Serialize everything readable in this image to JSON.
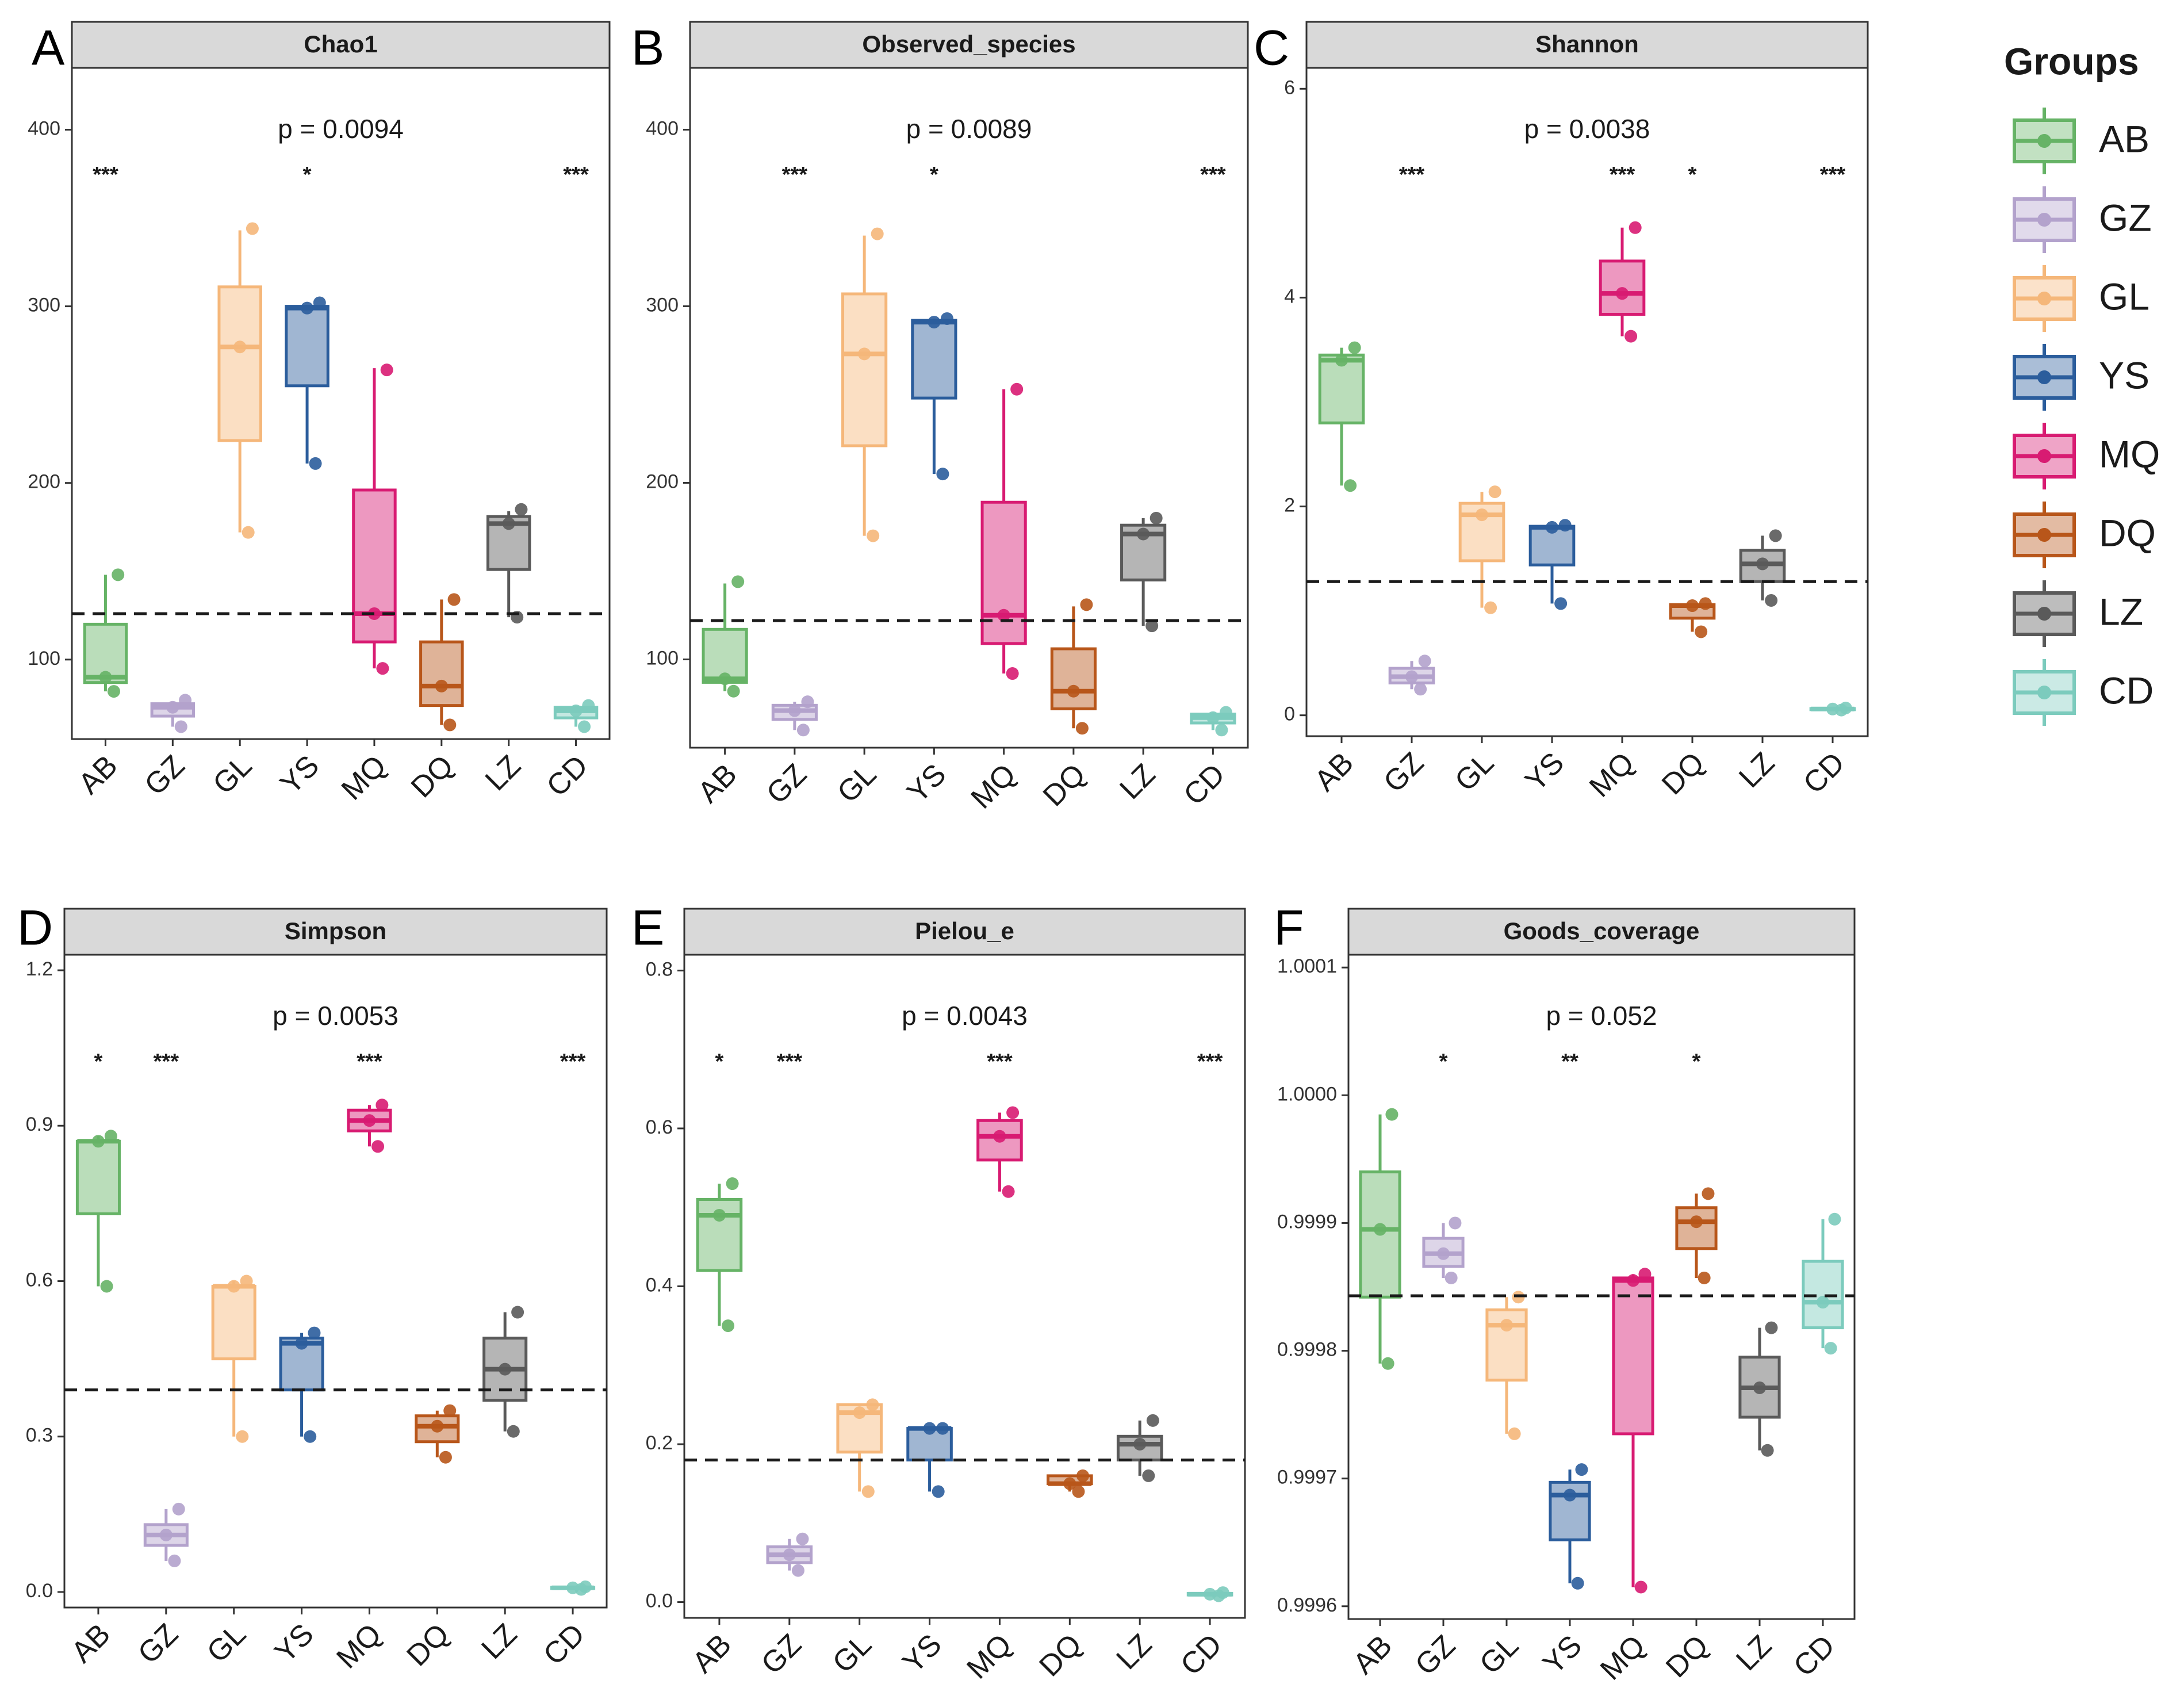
{
  "legend": {
    "title": "Groups",
    "entries": [
      {
        "name": "AB",
        "color": "#66b366"
      },
      {
        "name": "GZ",
        "color": "#b3a2cc"
      },
      {
        "name": "GL",
        "color": "#f5b77a"
      },
      {
        "name": "YS",
        "color": "#2b5d9c"
      },
      {
        "name": "MQ",
        "color": "#d81b72"
      },
      {
        "name": "DQ",
        "color": "#b8561a"
      },
      {
        "name": "LZ",
        "color": "#5a5a5a"
      },
      {
        "name": "CD",
        "color": "#7ccbbd"
      }
    ]
  },
  "chart_data": [
    {
      "type": "box",
      "letter": "A",
      "title": "Chao1",
      "pvalue": "p = 0.0094",
      "categories": [
        "AB",
        "GZ",
        "GL",
        "YS",
        "MQ",
        "DQ",
        "LZ",
        "CD"
      ],
      "ylim": [
        55,
        435
      ],
      "yticks": [
        {
          "v": 100,
          "label": "100"
        },
        {
          "v": 200,
          "label": "200"
        },
        {
          "v": 300,
          "label": "300"
        },
        {
          "v": 400,
          "label": "400"
        }
      ],
      "ref_line": 126,
      "significance": [
        "***",
        "",
        "",
        "*",
        "",
        "",
        "",
        "***"
      ],
      "boxes": [
        {
          "lo": 82,
          "q1": 87,
          "med": 90,
          "q3": 120,
          "hi": 148,
          "points": [
            82,
            90,
            148
          ]
        },
        {
          "lo": 62,
          "q1": 68,
          "med": 73,
          "q3": 75,
          "hi": 76,
          "points": [
            62,
            73,
            77
          ]
        },
        {
          "lo": 172,
          "q1": 224,
          "med": 277,
          "q3": 311,
          "hi": 343,
          "points": [
            172,
            277,
            344
          ]
        },
        {
          "lo": 211,
          "q1": 255,
          "med": 299,
          "q3": 300,
          "hi": 300,
          "points": [
            211,
            299,
            302
          ]
        },
        {
          "lo": 95,
          "q1": 110,
          "med": 126,
          "q3": 196,
          "hi": 265,
          "points": [
            95,
            126,
            264
          ]
        },
        {
          "lo": 63,
          "q1": 74,
          "med": 85,
          "q3": 110,
          "hi": 134,
          "points": [
            63,
            85,
            134
          ]
        },
        {
          "lo": 124,
          "q1": 151,
          "med": 177,
          "q3": 181,
          "hi": 184,
          "points": [
            124,
            177,
            185
          ]
        },
        {
          "lo": 62,
          "q1": 67,
          "med": 71,
          "q3": 73,
          "hi": 74,
          "points": [
            62,
            71,
            74
          ]
        }
      ]
    },
    {
      "type": "box",
      "letter": "B",
      "title": "Observed_species",
      "pvalue": "p = 0.0089",
      "categories": [
        "AB",
        "GZ",
        "GL",
        "YS",
        "MQ",
        "DQ",
        "LZ",
        "CD"
      ],
      "ylim": [
        50,
        435
      ],
      "yticks": [
        {
          "v": 100,
          "label": "100"
        },
        {
          "v": 200,
          "label": "200"
        },
        {
          "v": 300,
          "label": "300"
        },
        {
          "v": 400,
          "label": "400"
        }
      ],
      "ref_line": 122,
      "significance": [
        "",
        "***",
        "",
        "*",
        "",
        "",
        "",
        "***"
      ],
      "boxes": [
        {
          "lo": 82,
          "q1": 87,
          "med": 89,
          "q3": 117,
          "hi": 143,
          "points": [
            82,
            89,
            144
          ]
        },
        {
          "lo": 60,
          "q1": 66,
          "med": 71,
          "q3": 74,
          "hi": 76,
          "points": [
            60,
            71,
            76
          ]
        },
        {
          "lo": 170,
          "q1": 221,
          "med": 273,
          "q3": 307,
          "hi": 340,
          "points": [
            170,
            273,
            341
          ]
        },
        {
          "lo": 205,
          "q1": 248,
          "med": 291,
          "q3": 292,
          "hi": 293,
          "points": [
            205,
            291,
            293
          ]
        },
        {
          "lo": 92,
          "q1": 109,
          "med": 125,
          "q3": 189,
          "hi": 253,
          "points": [
            92,
            125,
            253
          ]
        },
        {
          "lo": 61,
          "q1": 72,
          "med": 82,
          "q3": 106,
          "hi": 130,
          "points": [
            61,
            82,
            131
          ]
        },
        {
          "lo": 119,
          "q1": 145,
          "med": 171,
          "q3": 176,
          "hi": 180,
          "points": [
            119,
            171,
            180
          ]
        },
        {
          "lo": 60,
          "q1": 64,
          "med": 67,
          "q3": 69,
          "hi": 70,
          "points": [
            60,
            67,
            70
          ]
        }
      ]
    },
    {
      "type": "box",
      "letter": "C",
      "title": "Shannon",
      "pvalue": "p = 0.0038",
      "categories": [
        "AB",
        "GZ",
        "GL",
        "YS",
        "MQ",
        "DQ",
        "LZ",
        "CD"
      ],
      "ylim": [
        -0.2,
        6.2
      ],
      "yticks": [
        {
          "v": 0,
          "label": "0"
        },
        {
          "v": 2,
          "label": "2"
        },
        {
          "v": 4,
          "label": "4"
        },
        {
          "v": 6,
          "label": "6"
        }
      ],
      "ref_line": 1.28,
      "significance": [
        "",
        "***",
        "",
        "",
        "***",
        "*",
        "",
        "***"
      ],
      "boxes": [
        {
          "lo": 2.2,
          "q1": 2.8,
          "med": 3.4,
          "q3": 3.45,
          "hi": 3.52,
          "points": [
            2.2,
            3.4,
            3.52
          ]
        },
        {
          "lo": 0.25,
          "q1": 0.31,
          "med": 0.37,
          "q3": 0.45,
          "hi": 0.52,
          "points": [
            0.25,
            0.37,
            0.52
          ]
        },
        {
          "lo": 1.03,
          "q1": 1.48,
          "med": 1.92,
          "q3": 2.03,
          "hi": 2.14,
          "points": [
            1.03,
            1.92,
            2.14
          ]
        },
        {
          "lo": 1.07,
          "q1": 1.44,
          "med": 1.8,
          "q3": 1.81,
          "hi": 1.82,
          "points": [
            1.07,
            1.8,
            1.82
          ]
        },
        {
          "lo": 3.63,
          "q1": 3.84,
          "med": 4.04,
          "q3": 4.35,
          "hi": 4.67,
          "points": [
            3.63,
            4.04,
            4.67
          ]
        },
        {
          "lo": 0.8,
          "q1": 0.93,
          "med": 1.05,
          "q3": 1.06,
          "hi": 1.07,
          "points": [
            0.8,
            1.05,
            1.07
          ]
        },
        {
          "lo": 1.1,
          "q1": 1.28,
          "med": 1.45,
          "q3": 1.58,
          "hi": 1.72,
          "points": [
            1.1,
            1.45,
            1.72
          ]
        },
        {
          "lo": 0.05,
          "q1": 0.055,
          "med": 0.06,
          "q3": 0.065,
          "hi": 0.07,
          "points": [
            0.05,
            0.06,
            0.07
          ]
        }
      ]
    },
    {
      "type": "box",
      "letter": "D",
      "title": "Simpson",
      "pvalue": "p = 0.0053",
      "categories": [
        "AB",
        "GZ",
        "GL",
        "YS",
        "MQ",
        "DQ",
        "LZ",
        "CD"
      ],
      "ylim": [
        -0.03,
        1.23
      ],
      "yticks": [
        {
          "v": 0,
          "label": "0.0"
        },
        {
          "v": 0.3,
          "label": "0.3"
        },
        {
          "v": 0.6,
          "label": "0.6"
        },
        {
          "v": 0.9,
          "label": "0.9"
        },
        {
          "v": 1.2,
          "label": "1.2"
        }
      ],
      "ref_line": 0.39,
      "significance": [
        "*",
        "***",
        "",
        "",
        "***",
        "",
        "",
        "***"
      ],
      "boxes": [
        {
          "lo": 0.59,
          "q1": 0.73,
          "med": 0.87,
          "q3": 0.87,
          "hi": 0.88,
          "points": [
            0.59,
            0.87,
            0.88
          ]
        },
        {
          "lo": 0.06,
          "q1": 0.09,
          "med": 0.11,
          "q3": 0.13,
          "hi": 0.16,
          "points": [
            0.06,
            0.11,
            0.16
          ]
        },
        {
          "lo": 0.3,
          "q1": 0.45,
          "med": 0.59,
          "q3": 0.59,
          "hi": 0.6,
          "points": [
            0.3,
            0.59,
            0.6
          ]
        },
        {
          "lo": 0.3,
          "q1": 0.39,
          "med": 0.48,
          "q3": 0.49,
          "hi": 0.5,
          "points": [
            0.3,
            0.48,
            0.5
          ]
        },
        {
          "lo": 0.86,
          "q1": 0.89,
          "med": 0.91,
          "q3": 0.93,
          "hi": 0.94,
          "points": [
            0.86,
            0.91,
            0.94
          ]
        },
        {
          "lo": 0.26,
          "q1": 0.29,
          "med": 0.32,
          "q3": 0.34,
          "hi": 0.35,
          "points": [
            0.26,
            0.32,
            0.35
          ]
        },
        {
          "lo": 0.31,
          "q1": 0.37,
          "med": 0.43,
          "q3": 0.49,
          "hi": 0.54,
          "points": [
            0.31,
            0.43,
            0.54
          ]
        },
        {
          "lo": 0.005,
          "q1": 0.007,
          "med": 0.008,
          "q3": 0.009,
          "hi": 0.01,
          "points": [
            0.005,
            0.008,
            0.01
          ]
        }
      ]
    },
    {
      "type": "box",
      "letter": "E",
      "title": "Pielou_e",
      "pvalue": "p = 0.0043",
      "categories": [
        "AB",
        "GZ",
        "GL",
        "YS",
        "MQ",
        "DQ",
        "LZ",
        "CD"
      ],
      "ylim": [
        -0.02,
        0.82
      ],
      "yticks": [
        {
          "v": 0,
          "label": "0.0"
        },
        {
          "v": 0.2,
          "label": "0.2"
        },
        {
          "v": 0.4,
          "label": "0.4"
        },
        {
          "v": 0.6,
          "label": "0.6"
        },
        {
          "v": 0.8,
          "label": "0.8"
        }
      ],
      "ref_line": 0.18,
      "significance": [
        "*",
        "***",
        "",
        "",
        "***",
        "",
        "",
        "***"
      ],
      "boxes": [
        {
          "lo": 0.35,
          "q1": 0.42,
          "med": 0.49,
          "q3": 0.51,
          "hi": 0.53,
          "points": [
            0.35,
            0.49,
            0.53
          ]
        },
        {
          "lo": 0.04,
          "q1": 0.05,
          "med": 0.06,
          "q3": 0.07,
          "hi": 0.08,
          "points": [
            0.04,
            0.06,
            0.08
          ]
        },
        {
          "lo": 0.14,
          "q1": 0.19,
          "med": 0.24,
          "q3": 0.25,
          "hi": 0.25,
          "points": [
            0.14,
            0.24,
            0.25
          ]
        },
        {
          "lo": 0.14,
          "q1": 0.18,
          "med": 0.22,
          "q3": 0.22,
          "hi": 0.22,
          "points": [
            0.14,
            0.22,
            0.22
          ]
        },
        {
          "lo": 0.52,
          "q1": 0.56,
          "med": 0.59,
          "q3": 0.61,
          "hi": 0.62,
          "points": [
            0.52,
            0.59,
            0.62
          ]
        },
        {
          "lo": 0.14,
          "q1": 0.15,
          "med": 0.15,
          "q3": 0.16,
          "hi": 0.16,
          "points": [
            0.14,
            0.15,
            0.16
          ]
        },
        {
          "lo": 0.16,
          "q1": 0.18,
          "med": 0.2,
          "q3": 0.21,
          "hi": 0.23,
          "points": [
            0.16,
            0.2,
            0.23
          ]
        },
        {
          "lo": 0.008,
          "q1": 0.009,
          "med": 0.01,
          "q3": 0.011,
          "hi": 0.012,
          "points": [
            0.008,
            0.01,
            0.012
          ]
        }
      ]
    },
    {
      "type": "box",
      "letter": "F",
      "title": "Goods_coverage",
      "pvalue": "p = 0.052",
      "categories": [
        "AB",
        "GZ",
        "GL",
        "YS",
        "MQ",
        "DQ",
        "LZ",
        "CD"
      ],
      "ylim": [
        0.99959,
        1.00011
      ],
      "yticks": [
        {
          "v": 0.9996,
          "label": "0.9996"
        },
        {
          "v": 0.9997,
          "label": "0.9997"
        },
        {
          "v": 0.9998,
          "label": "0.9998"
        },
        {
          "v": 0.9999,
          "label": "0.9999"
        },
        {
          "v": 1.0,
          "label": "1.0000"
        },
        {
          "v": 1.0001,
          "label": "1.0001"
        }
      ],
      "ref_line": 0.999843,
      "significance": [
        "",
        "*",
        "",
        "**",
        "",
        "*",
        "",
        ""
      ],
      "boxes": [
        {
          "lo": 0.99979,
          "q1": 0.999842,
          "med": 0.999895,
          "q3": 0.99994,
          "hi": 0.999985,
          "points": [
            0.99979,
            0.999895,
            0.999985
          ]
        },
        {
          "lo": 0.999857,
          "q1": 0.999866,
          "med": 0.999876,
          "q3": 0.999888,
          "hi": 0.9999,
          "points": [
            0.999857,
            0.999876,
            0.9999
          ]
        },
        {
          "lo": 0.999735,
          "q1": 0.999777,
          "med": 0.99982,
          "q3": 0.999832,
          "hi": 0.999842,
          "points": [
            0.999735,
            0.99982,
            0.999842
          ]
        },
        {
          "lo": 0.999618,
          "q1": 0.999652,
          "med": 0.999687,
          "q3": 0.999697,
          "hi": 0.999707,
          "points": [
            0.999618,
            0.999687,
            0.999707
          ]
        },
        {
          "lo": 0.999615,
          "q1": 0.999735,
          "med": 0.999855,
          "q3": 0.999857,
          "hi": 0.99986,
          "points": [
            0.999615,
            0.999855,
            0.99986
          ]
        },
        {
          "lo": 0.999857,
          "q1": 0.99988,
          "med": 0.999901,
          "q3": 0.999912,
          "hi": 0.999923,
          "points": [
            0.999857,
            0.999901,
            0.999923
          ]
        },
        {
          "lo": 0.999722,
          "q1": 0.999748,
          "med": 0.999771,
          "q3": 0.999795,
          "hi": 0.999818,
          "points": [
            0.999722,
            0.999771,
            0.999818
          ]
        },
        {
          "lo": 0.999802,
          "q1": 0.999818,
          "med": 0.999838,
          "q3": 0.99987,
          "hi": 0.999903,
          "points": [
            0.999802,
            0.999838,
            0.999903
          ]
        }
      ]
    }
  ]
}
